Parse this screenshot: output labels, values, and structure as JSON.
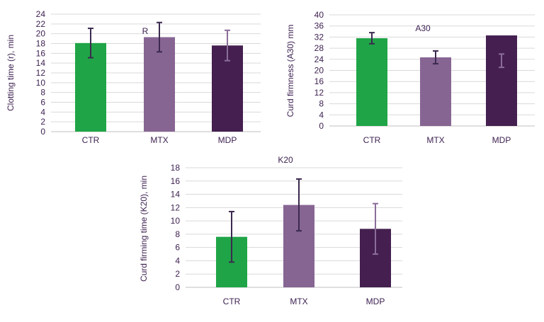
{
  "chart_data": [
    {
      "type": "bar",
      "title": "R",
      "ylabel": "Clotting time (r), min",
      "categories": [
        "CTR",
        "MTX",
        "MDP"
      ],
      "values": [
        18.1,
        19.3,
        17.6
      ],
      "error": [
        3.0,
        3.0,
        3.1
      ],
      "colors": [
        "#1fa547",
        "#876593",
        "#441f4f"
      ],
      "error_colors": [
        "#3b2a4f",
        "#3b2a4f",
        "#8b6d99"
      ],
      "ylim": [
        0,
        24
      ],
      "yticks": [
        "0",
        "2",
        "4",
        "6",
        "8",
        "10",
        "12",
        "14",
        "16",
        "18",
        "20",
        "22",
        "24"
      ],
      "grid": true
    },
    {
      "type": "bar",
      "title": "A30",
      "ylabel": "Curd firmness (A30) mm",
      "categories": [
        "CTR",
        "MTX",
        "MDP"
      ],
      "values": [
        31.6,
        24.7,
        32.6
      ],
      "error": [
        2.0,
        2.3,
        2.4
      ],
      "error_centers": [
        31.6,
        24.7,
        23.5
      ],
      "colors": [
        "#1fa547",
        "#876593",
        "#441f4f"
      ],
      "error_colors": [
        "#3b2a4f",
        "#3b2a4f",
        "#8b6d99"
      ],
      "ylim": [
        0,
        40
      ],
      "yticks": [
        "0",
        "4",
        "8",
        "12",
        "16",
        "20",
        "24",
        "28",
        "32",
        "36",
        "40"
      ],
      "grid": true
    },
    {
      "type": "bar",
      "title": "K20",
      "ylabel": "Curd firming time (K20), min",
      "categories": [
        "CTR",
        "MTX",
        "MDP"
      ],
      "values": [
        7.6,
        12.4,
        8.8
      ],
      "error": [
        3.8,
        3.9,
        3.8
      ],
      "colors": [
        "#1fa547",
        "#876593",
        "#441f4f"
      ],
      "error_colors": [
        "#3b2a4f",
        "#3b2a4f",
        "#8b6d99"
      ],
      "ylim": [
        0,
        18
      ],
      "yticks": [
        "0",
        "2",
        "4",
        "6",
        "8",
        "10",
        "12",
        "14",
        "16",
        "18"
      ],
      "grid": true
    }
  ]
}
